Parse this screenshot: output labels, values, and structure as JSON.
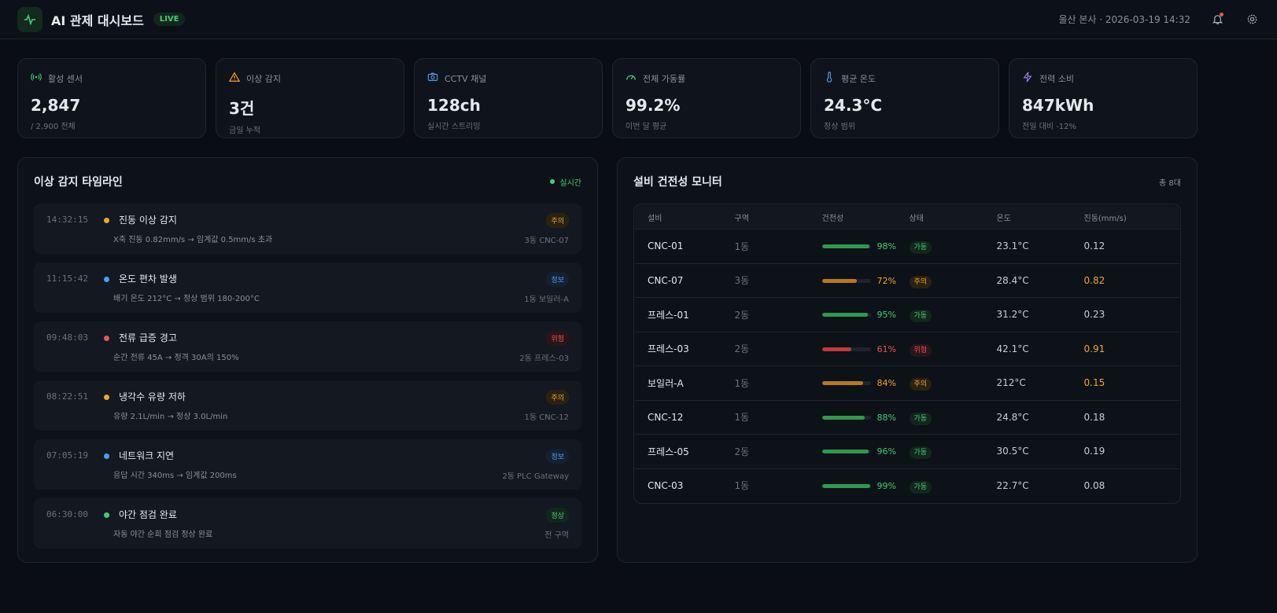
{
  "header": {
    "title": "AI 관제 대시보드",
    "live": "LIVE",
    "meta": "울산 본사 · 2026-03-19 14:32"
  },
  "stats": [
    {
      "label": "활성 센서",
      "value": "2,847",
      "sub": "/ 2,900 전체",
      "icon": "signal-icon",
      "color": "#3fcf74"
    },
    {
      "label": "이상 감지",
      "value": "3건",
      "sub": "금일 누적",
      "icon": "warning-icon",
      "color": "#f5a524"
    },
    {
      "label": "CCTV 채널",
      "value": "128ch",
      "sub": "실시간 스트리밍",
      "icon": "camera-icon",
      "color": "#4f9cf0"
    },
    {
      "label": "전체 가동률",
      "value": "99.2%",
      "sub": "이번 달 평균",
      "icon": "gauge-icon",
      "color": "#3fcf74"
    },
    {
      "label": "평균 온도",
      "value": "24.3°C",
      "sub": "정상 범위",
      "icon": "thermometer-icon",
      "color": "#4f9cf0"
    },
    {
      "label": "전력 소비",
      "value": "847kWh",
      "sub": "전일 대비 -12%",
      "icon": "bolt-icon",
      "color": "#9b7cf0"
    }
  ],
  "timeline": {
    "title": "이상 감지 타임라인",
    "status": "실시간",
    "events": [
      {
        "time": "14:32:15",
        "title": "진동 이상 감지",
        "desc": "X축 진동 0.82mm/s → 임계값 0.5mm/s 초과",
        "badge": "주의",
        "loc": "3동 CNC-07",
        "level": "warn"
      },
      {
        "time": "11:15:42",
        "title": "온도 편차 발생",
        "desc": "배기 온도 212°C → 정상 범위 180-200°C",
        "badge": "정보",
        "loc": "1동 보일러-A",
        "level": "info"
      },
      {
        "time": "09:48:03",
        "title": "전류 급증 경고",
        "desc": "순간 전류 45A → 정격 30A의 150%",
        "badge": "위험",
        "loc": "2동 프레스-03",
        "level": "danger"
      },
      {
        "time": "08:22:51",
        "title": "냉각수 유량 저하",
        "desc": "유량 2.1L/min → 정상 3.0L/min",
        "badge": "주의",
        "loc": "1동 CNC-12",
        "level": "warn"
      },
      {
        "time": "07:05:19",
        "title": "네트워크 지연",
        "desc": "응답 시간 340ms → 임계값 200ms",
        "badge": "정보",
        "loc": "2동 PLC Gateway",
        "level": "info"
      },
      {
        "time": "06:30:00",
        "title": "야간 점검 완료",
        "desc": "자동 야간 순회 점검 정상 완료",
        "badge": "정상",
        "loc": "전 구역",
        "level": "ok"
      }
    ]
  },
  "equipment": {
    "title": "설비 건전성 모니터",
    "count": "총 8대",
    "columns": [
      "설비",
      "구역",
      "건전성",
      "상태",
      "온도",
      "진동(mm/s)"
    ],
    "rows": [
      {
        "name": "CNC-01",
        "zone": "1동",
        "health": 98,
        "health_label": "98%",
        "status": "가동",
        "level": "ok",
        "temp": "23.1°C",
        "vib": "0.12",
        "vib_alert": false
      },
      {
        "name": "CNC-07",
        "zone": "3동",
        "health": 72,
        "health_label": "72%",
        "status": "주의",
        "level": "warn",
        "temp": "28.4°C",
        "vib": "0.82",
        "vib_alert": true
      },
      {
        "name": "프레스-01",
        "zone": "2동",
        "health": 95,
        "health_label": "95%",
        "status": "가동",
        "level": "ok",
        "temp": "31.2°C",
        "vib": "0.23",
        "vib_alert": false
      },
      {
        "name": "프레스-03",
        "zone": "2동",
        "health": 61,
        "health_label": "61%",
        "status": "위험",
        "level": "danger",
        "temp": "42.1°C",
        "vib": "0.91",
        "vib_alert": true
      },
      {
        "name": "보일러-A",
        "zone": "1동",
        "health": 84,
        "health_label": "84%",
        "status": "주의",
        "level": "warn",
        "temp": "212°C",
        "vib": "0.15",
        "vib_alert": true
      },
      {
        "name": "CNC-12",
        "zone": "1동",
        "health": 88,
        "health_label": "88%",
        "status": "가동",
        "level": "ok",
        "temp": "24.8°C",
        "vib": "0.18",
        "vib_alert": false
      },
      {
        "name": "프레스-05",
        "zone": "2동",
        "health": 96,
        "health_label": "96%",
        "status": "가동",
        "level": "ok",
        "temp": "30.5°C",
        "vib": "0.19",
        "vib_alert": false
      },
      {
        "name": "CNC-03",
        "zone": "1동",
        "health": 99,
        "health_label": "99%",
        "status": "가동",
        "level": "ok",
        "temp": "22.7°C",
        "vib": "0.08",
        "vib_alert": false
      }
    ]
  }
}
